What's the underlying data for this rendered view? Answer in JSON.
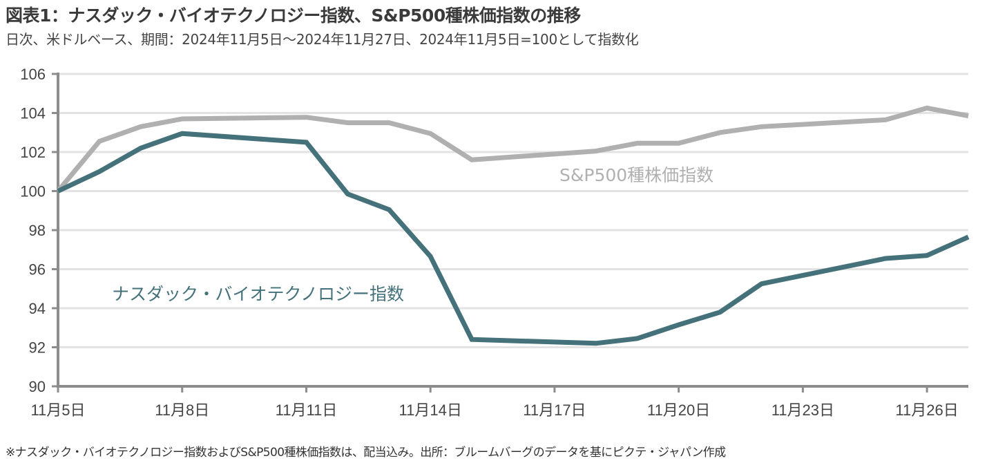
{
  "header": {
    "title": "図表1：ナスダック・バイオテクノロジー指数、S&P500種株価指数の推移",
    "subtitle": "日次、米ドルベース、期間：2024年11月5日～2024年11月27日、2024年11月5日=100として指数化"
  },
  "footnote": "※ナスダック・バイオテクノロジー指数およびS&P500種株価指数は、配当込み。出所：ブルームバーグのデータを基にピクテ・ジャパン作成",
  "chart_data": {
    "type": "line",
    "title": "図表1：ナスダック・バイオテクノロジー指数、S&P500種株価指数の推移",
    "subtitle": "日次、米ドルベース、期間：2024年11月5日～2024年11月27日、2024年11月5日=100として指数化",
    "xlabel": "",
    "ylabel": "",
    "x_unit": "day of November 2024",
    "xlim": [
      5,
      27
    ],
    "ylim": [
      90,
      106
    ],
    "yticks": [
      90,
      92,
      94,
      96,
      98,
      100,
      102,
      104,
      106
    ],
    "xticks": [
      {
        "day": 5,
        "label": "11月5日"
      },
      {
        "day": 8,
        "label": "11月8日"
      },
      {
        "day": 11,
        "label": "11月11日"
      },
      {
        "day": 14,
        "label": "11月14日"
      },
      {
        "day": 17,
        "label": "11月17日"
      },
      {
        "day": 20,
        "label": "11月20日"
      },
      {
        "day": 23,
        "label": "11月23日"
      },
      {
        "day": 26,
        "label": "11月26日"
      }
    ],
    "grid": true,
    "legend": "inline labels",
    "series": [
      {
        "name": "S&P500種株価指数",
        "color": "#b0b0b0",
        "label_position": "center-right, below line",
        "x": [
          5,
          6,
          7,
          8,
          11,
          12,
          13,
          14,
          15,
          18,
          19,
          20,
          21,
          22,
          25,
          26,
          27
        ],
        "values": [
          100.0,
          102.55,
          103.3,
          103.7,
          103.78,
          103.5,
          103.5,
          102.95,
          101.6,
          102.05,
          102.45,
          102.45,
          103.0,
          103.3,
          103.65,
          104.25,
          103.85
        ]
      },
      {
        "name": "ナスダック・バイオテクノロジー指数",
        "color": "#44717a",
        "label_position": "center-left, below line",
        "x": [
          5,
          6,
          7,
          8,
          11,
          12,
          13,
          14,
          15,
          18,
          19,
          20,
          21,
          22,
          25,
          26,
          27
        ],
        "values": [
          100.0,
          101.0,
          102.2,
          102.95,
          102.5,
          99.85,
          99.05,
          96.65,
          92.4,
          92.2,
          92.45,
          93.15,
          93.8,
          95.25,
          96.55,
          96.7,
          97.65
        ]
      }
    ]
  }
}
